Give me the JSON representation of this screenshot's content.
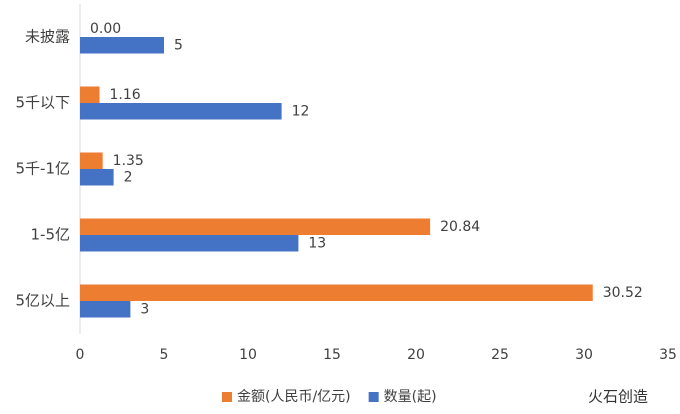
{
  "chart_data": {
    "type": "hbar",
    "categories": [
      "未披露",
      "5千以下",
      "5千-1亿",
      "1-5亿",
      "5亿以上"
    ],
    "series": [
      {
        "name": "金额(人民币/亿元)",
        "color": "#ED7D31",
        "values": [
          0.0,
          1.16,
          1.35,
          20.84,
          30.52
        ],
        "value_labels": [
          "0.00",
          "1.16",
          "1.35",
          "20.84",
          "30.52"
        ]
      },
      {
        "name": "数量(起)",
        "color": "#4472C4",
        "values": [
          5,
          12,
          2,
          13,
          3
        ]
      }
    ],
    "xlim": [
      0,
      35
    ],
    "xticks": [
      0,
      5,
      10,
      15,
      20,
      25,
      30,
      35
    ],
    "legend": "bottom",
    "grid": false,
    "source_label": "火石创造"
  }
}
